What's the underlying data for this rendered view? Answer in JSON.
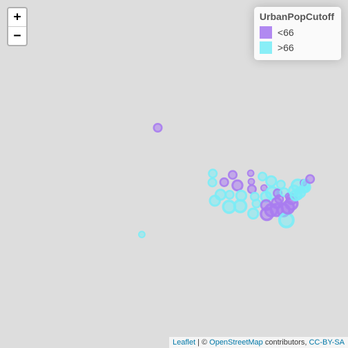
{
  "zoom": {
    "in_label": "+",
    "out_label": "−"
  },
  "legend": {
    "title": "UrbanPopCutoff",
    "items": [
      {
        "label": "<66",
        "color": "#a97cf0"
      },
      {
        "label": ">66",
        "color": "#7cecf6"
      }
    ]
  },
  "attribution": {
    "leaflet": "Leaflet",
    "separator": " | © ",
    "osm": "OpenStreetMap",
    "contributors": " contributors, ",
    "license": "CC-BY-SA"
  },
  "markers": [
    {
      "lon": -149.5,
      "lat": 61.3,
      "group": "<66",
      "size": 2
    },
    {
      "lon": -157.9,
      "lat": 21.3,
      "group": ">66",
      "size": 1
    },
    {
      "lon": -120.5,
      "lat": 47.4,
      "group": ">66",
      "size": 2
    },
    {
      "lon": -120.7,
      "lat": 44.1,
      "group": ">66",
      "size": 2
    },
    {
      "lon": -119.4,
      "lat": 36.8,
      "group": ">66",
      "size": 3
    },
    {
      "lon": -116.4,
      "lat": 39.3,
      "group": ">66",
      "size": 3
    },
    {
      "lon": -114.5,
      "lat": 44.2,
      "group": "<66",
      "size": 2
    },
    {
      "lon": -111.9,
      "lat": 34.2,
      "group": ">66",
      "size": 4
    },
    {
      "lon": -110.0,
      "lat": 46.9,
      "group": "<66",
      "size": 2
    },
    {
      "lon": -111.6,
      "lat": 39.3,
      "group": ">66",
      "size": 2
    },
    {
      "lon": -107.5,
      "lat": 43.0,
      "group": "<66",
      "size": 3
    },
    {
      "lon": -105.5,
      "lat": 38.9,
      "group": ">66",
      "size": 3
    },
    {
      "lon": -106.0,
      "lat": 34.5,
      "group": ">66",
      "size": 4
    },
    {
      "lon": -100.5,
      "lat": 47.5,
      "group": "<66",
      "size": 1
    },
    {
      "lon": -100.2,
      "lat": 44.4,
      "group": "<66",
      "size": 1
    },
    {
      "lon": -99.9,
      "lat": 41.5,
      "group": "<66",
      "size": 2
    },
    {
      "lon": -98.4,
      "lat": 38.5,
      "group": ">66",
      "size": 2
    },
    {
      "lon": -97.5,
      "lat": 35.6,
      "group": ">66",
      "size": 2
    },
    {
      "lon": -99.2,
      "lat": 31.2,
      "group": ">66",
      "size": 3
    },
    {
      "lon": -94.3,
      "lat": 46.3,
      "group": ">66",
      "size": 2
    },
    {
      "lon": -93.5,
      "lat": 42.0,
      "group": "<66",
      "size": 1
    },
    {
      "lon": -92.5,
      "lat": 38.5,
      "group": ">66",
      "size": 3
    },
    {
      "lon": -92.4,
      "lat": 34.9,
      "group": "<66",
      "size": 3
    },
    {
      "lon": -92.0,
      "lat": 31.0,
      "group": "<66",
      "size": 4
    },
    {
      "lon": -89.7,
      "lat": 44.6,
      "group": ">66",
      "size": 3
    },
    {
      "lon": -89.2,
      "lat": 40.0,
      "group": ">66",
      "size": 4
    },
    {
      "lon": -89.7,
      "lat": 32.7,
      "group": "<66",
      "size": 4
    },
    {
      "lon": -85.5,
      "lat": 37.5,
      "group": "<66",
      "size": 2
    },
    {
      "lon": -86.8,
      "lat": 35.8,
      "group": "<66",
      "size": 3
    },
    {
      "lon": -86.8,
      "lat": 32.8,
      "group": "<66",
      "size": 4
    },
    {
      "lon": -86.3,
      "lat": 39.9,
      "group": "<66",
      "size": 2
    },
    {
      "lon": -84.6,
      "lat": 43.3,
      "group": ">66",
      "size": 2
    },
    {
      "lon": -82.8,
      "lat": 40.3,
      "group": ">66",
      "size": 2
    },
    {
      "lon": -83.2,
      "lat": 32.7,
      "group": "<66",
      "size": 4
    },
    {
      "lon": -81.7,
      "lat": 28.2,
      "group": ">66",
      "size": 5
    },
    {
      "lon": -80.6,
      "lat": 38.6,
      "group": "<66",
      "size": 1
    },
    {
      "lon": -80.9,
      "lat": 33.9,
      "group": "<66",
      "size": 4
    },
    {
      "lon": -79.0,
      "lat": 35.6,
      "group": "<66",
      "size": 4
    },
    {
      "lon": -78.9,
      "lat": 37.5,
      "group": "<66",
      "size": 3
    },
    {
      "lon": -77.7,
      "lat": 41.0,
      "group": ">66",
      "size": 3
    },
    {
      "lon": -75.7,
      "lat": 42.9,
      "group": ">66",
      "size": 4
    },
    {
      "lon": -76.8,
      "lat": 39.0,
      "group": ">66",
      "size": 3
    },
    {
      "lon": -75.5,
      "lat": 39.0,
      "group": ">66",
      "size": 2
    },
    {
      "lon": -74.5,
      "lat": 40.2,
      "group": ">66",
      "size": 3
    },
    {
      "lon": -72.7,
      "lat": 41.6,
      "group": ">66",
      "size": 2
    },
    {
      "lon": -71.5,
      "lat": 41.7,
      "group": ">66",
      "size": 1
    },
    {
      "lon": -71.8,
      "lat": 42.3,
      "group": ">66",
      "size": 3
    },
    {
      "lon": -72.7,
      "lat": 44.0,
      "group": "<66",
      "size": 1
    },
    {
      "lon": -71.6,
      "lat": 43.7,
      "group": ">66",
      "size": 2
    },
    {
      "lon": -69.2,
      "lat": 45.4,
      "group": "<66",
      "size": 2
    }
  ]
}
